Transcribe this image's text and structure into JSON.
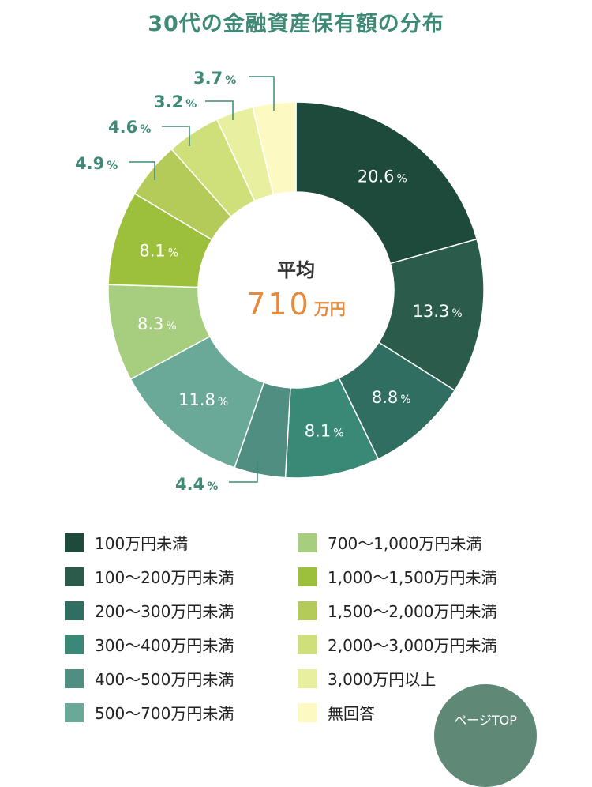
{
  "chart_data": {
    "type": "pie",
    "donut": true,
    "title": "30代の金融資産保有額の分布",
    "center_label": "平均",
    "center_value": "710",
    "center_unit": "万円",
    "unit": "%",
    "start": "top, clockwise",
    "categories": [
      "100万円未満",
      "100〜200万円未満",
      "200〜300万円未満",
      "300〜400万円未満",
      "400〜500万円未満",
      "500〜700万円未満",
      "700〜1,000万円未満",
      "1,000〜1,500万円未満",
      "1,500〜2,000万円未満",
      "2,000〜3,000万円未満",
      "3,000万円以上",
      "無回答"
    ],
    "values": [
      20.6,
      13.3,
      8.8,
      8.1,
      4.4,
      11.8,
      8.3,
      8.1,
      4.9,
      4.6,
      3.2,
      3.7
    ],
    "labels": [
      "20.6",
      "13.3",
      "8.8",
      "8.1",
      "4.4",
      "11.8",
      "8.3",
      "8.1",
      "4.9",
      "4.6",
      "3.2",
      "3.7"
    ],
    "colors": [
      "#1d4a3b",
      "#2b5c4b",
      "#2f6e60",
      "#3a8876",
      "#4f8e80",
      "#6aa898",
      "#a6ce7e",
      "#9cbf3c",
      "#b4cb5a",
      "#cfe07a",
      "#e8f0a0",
      "#fcf9c2"
    ],
    "legend_placement": "bottom"
  },
  "ui": {
    "page_top_button": "ページTOP"
  }
}
